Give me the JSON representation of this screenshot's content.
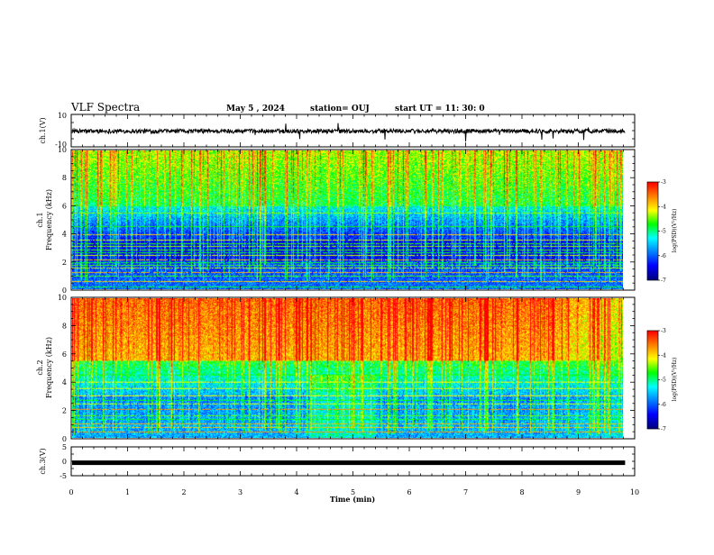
{
  "header": {
    "title": "VLF Spectra",
    "date": "May 5  , 2024",
    "station": "station= OUJ",
    "start": "start  UT  =   11: 30: 0"
  },
  "colors": {
    "ramp": [
      "#000080",
      "#0000ff",
      "#0080ff",
      "#00ffff",
      "#00ff00",
      "#ffff00",
      "#ff8000",
      "#ff0000",
      "#ffffff"
    ],
    "trace": "#000000"
  },
  "chart_data": [
    {
      "type": "line",
      "name": "waveform-ch1",
      "ylabel": "ch.1(V)",
      "ylim": [
        -10,
        10
      ],
      "yticks": [
        "10",
        "-10"
      ],
      "level": -0.3
    },
    {
      "type": "heatmap",
      "name": "spectrogram-ch1",
      "ylabel_line1": "ch.1",
      "ylabel_line2": "Frequency (kHz)",
      "ylim": [
        0,
        10
      ],
      "yticks": [
        "0",
        "2",
        "4",
        "6",
        "8",
        "10"
      ],
      "xlim": [
        0,
        10
      ],
      "data_end_min": 9.83,
      "colorbar": {
        "range": [
          -7,
          -3
        ],
        "ticks": [
          "-3",
          "-4",
          "-5",
          "-6",
          "-7"
        ],
        "label": "log(PSD)(V²/Hz)"
      }
    },
    {
      "type": "heatmap",
      "name": "spectrogram-ch2",
      "ylabel_line1": "ch.2",
      "ylabel_line2": "Frequency (kHz)",
      "ylim": [
        0,
        10
      ],
      "yticks": [
        "0",
        "2",
        "4",
        "6",
        "8",
        "10"
      ],
      "xlim": [
        0,
        10
      ],
      "data_end_min": 9.83,
      "colorbar": {
        "range": [
          -7,
          -3
        ],
        "ticks": [
          "-3",
          "-4",
          "-5",
          "-6",
          "-7"
        ],
        "label": "log(PSD)(V²/Hz)"
      }
    },
    {
      "type": "line",
      "name": "waveform-ch3",
      "ylabel": "ch.3(V)",
      "ylim": [
        -5,
        5
      ],
      "yticks": [
        "5",
        "0",
        "-5"
      ],
      "level": -0.5,
      "xlabel": "Time  (min)",
      "xlim": [
        0,
        10
      ],
      "xticks": [
        "0",
        "1",
        "2",
        "3",
        "4",
        "5",
        "6",
        "7",
        "8",
        "9",
        "10"
      ]
    }
  ]
}
